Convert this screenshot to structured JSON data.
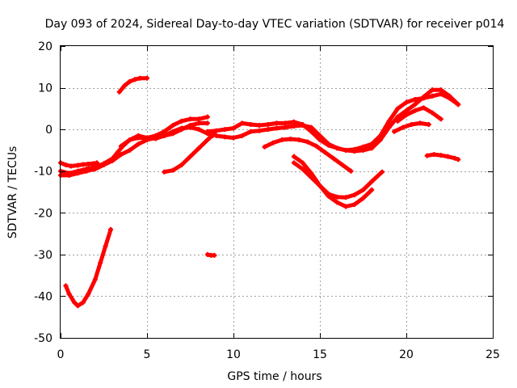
{
  "chart_data": {
    "type": "line",
    "title": "Day 093 of 2024, Sidereal Day-to-day VTEC variation (SDTVAR) for receiver p014",
    "xlabel": "GPS time / hours",
    "ylabel": "SDTVAR / TECUs",
    "xlim": [
      0,
      25
    ],
    "ylim": [
      -50,
      20
    ],
    "xticks": [
      0,
      5,
      10,
      15,
      20,
      25
    ],
    "yticks": [
      -50,
      -40,
      -30,
      -20,
      -10,
      0,
      10,
      20
    ],
    "xtick_labels": [
      "0",
      "5",
      "10",
      "15",
      "20",
      "25"
    ],
    "ytick_labels": [
      "-50",
      "-40",
      "-30",
      "-20",
      "-10",
      "0",
      "10",
      "20"
    ],
    "grid": true,
    "series_color": "#ff0000",
    "series": [
      {
        "name": "s1",
        "x": [
          0.0,
          0.3,
          0.6,
          1.0,
          1.3,
          1.6,
          1.9,
          2.1
        ],
        "y": [
          -8,
          -8.5,
          -8.8,
          -8.6,
          -8.4,
          -8.3,
          -8.2,
          -8.0
        ]
      },
      {
        "name": "s2",
        "x": [
          0.0,
          0.5,
          1.0,
          1.5,
          2.0,
          2.5,
          3.0,
          3.5,
          4.0,
          4.5,
          5.0,
          5.5,
          6.0,
          6.5,
          7.0,
          7.5,
          8.0,
          8.5
        ],
        "y": [
          -11,
          -11,
          -10.5,
          -10,
          -9.5,
          -8.5,
          -7.5,
          -6,
          -5,
          -3.5,
          -2.5,
          -2,
          -1.5,
          -1,
          0,
          1,
          1.5,
          1.5
        ]
      },
      {
        "name": "s3",
        "x": [
          0.0,
          0.5,
          1.0,
          1.5,
          2.0,
          2.5,
          3.0,
          3.3,
          3.6,
          4.0,
          4.5,
          5.0,
          5.5,
          6.0,
          6.5,
          7.0,
          7.5,
          8.0,
          8.5,
          8.8
        ],
        "y": [
          -10,
          -10.5,
          -10,
          -9.5,
          -9,
          -8.2,
          -7,
          -5.5,
          -4,
          -2.5,
          -1.5,
          -2,
          -2.2,
          -1.5,
          -0.5,
          0.3,
          0.5,
          0,
          -1,
          -1.5
        ]
      },
      {
        "name": "s4",
        "x": [
          3.5,
          4.0,
          4.5,
          5.0,
          5.5,
          6.0,
          6.5,
          7.0,
          7.5,
          8.0,
          8.5
        ],
        "y": [
          -4,
          -2.5,
          -2,
          -2,
          -1.5,
          -0.5,
          1,
          2,
          2.5,
          2.5,
          3
        ]
      },
      {
        "name": "s5",
        "x": [
          3.4,
          3.7,
          4.0,
          4.3,
          4.6,
          5.0
        ],
        "y": [
          9,
          10.5,
          11.5,
          12,
          12.3,
          12.3
        ]
      },
      {
        "name": "s6",
        "x": [
          0.3,
          0.5,
          0.8,
          1.0,
          1.3,
          1.6,
          2.0,
          2.3,
          2.6,
          2.9
        ],
        "y": [
          -37.5,
          -39.5,
          -41.5,
          -42.3,
          -41.5,
          -39.5,
          -36,
          -32,
          -28,
          -24
        ]
      },
      {
        "name": "s7",
        "x": [
          6.0,
          6.5,
          7.0,
          7.5,
          8.0,
          8.5,
          8.9
        ],
        "y": [
          -10.2,
          -9.8,
          -8.5,
          -6.5,
          -4.5,
          -2.5,
          -1
        ]
      },
      {
        "name": "s8",
        "x": [
          8.5,
          8.7,
          8.9
        ],
        "y": [
          -30,
          -30.2,
          -30.2
        ]
      },
      {
        "name": "s9",
        "x": [
          8.5,
          9.0,
          9.5,
          10.0,
          10.5,
          11.0,
          11.5,
          12.0,
          12.5,
          13.0,
          13.5,
          14.0,
          14.5,
          15.0,
          15.5,
          16.0,
          16.5,
          17.0,
          17.5,
          18.0,
          18.5,
          19.0,
          19.5,
          20.0,
          20.5,
          21.0,
          21.5,
          22.0,
          22.5,
          23.0
        ],
        "y": [
          -0.5,
          -0.3,
          0,
          0.3,
          1.5,
          1.2,
          1,
          1.2,
          1.5,
          1.5,
          1.8,
          1.2,
          -0.5,
          -2.5,
          -3.8,
          -4.5,
          -5,
          -4.8,
          -4.2,
          -3.5,
          -1.5,
          2,
          5,
          6.5,
          7.2,
          7.5,
          8,
          8.5,
          7.5,
          6
        ]
      },
      {
        "name": "s10",
        "x": [
          9.0,
          9.5,
          10.0,
          10.5,
          11.0,
          11.5,
          12.0,
          12.5,
          13.0,
          13.5,
          14.0,
          14.5,
          15.0,
          15.5,
          16.0,
          16.5,
          17.0,
          17.5,
          18.0,
          18.5,
          19.0,
          19.5,
          20.0,
          20.5,
          21.0,
          21.5,
          22.0,
          22.5,
          23.0
        ],
        "y": [
          -1.5,
          -1.8,
          -2,
          -1.5,
          -0.5,
          -0.3,
          0,
          0.3,
          0.5,
          0.8,
          1,
          0.5,
          -1.5,
          -3.5,
          -4.5,
          -5,
          -5.2,
          -5,
          -4.5,
          -2.5,
          0.5,
          3,
          4.5,
          6,
          7.8,
          9.5,
          9.5,
          8,
          6
        ]
      },
      {
        "name": "s11",
        "x": [
          11.8,
          12.3,
          12.8,
          13.3,
          13.8,
          14.3,
          14.8,
          15.3,
          15.8,
          16.3,
          16.8
        ],
        "y": [
          -4.2,
          -3.2,
          -2.5,
          -2.3,
          -2.5,
          -3,
          -4,
          -5.5,
          -7,
          -8.5,
          -10
        ]
      },
      {
        "name": "s12",
        "x": [
          13.5,
          14.0,
          14.5,
          15.0,
          15.5,
          16.0,
          16.5,
          17.0,
          17.5,
          18.0,
          18.6
        ],
        "y": [
          -8,
          -9.5,
          -11.5,
          -13.5,
          -15.5,
          -16.2,
          -16.3,
          -15.7,
          -14.5,
          -12.5,
          -10.2
        ]
      },
      {
        "name": "s13",
        "x": [
          13.5,
          14.0,
          14.5,
          15.0,
          15.5,
          16.0,
          16.5,
          17.0,
          17.5,
          18.0
        ],
        "y": [
          -6.5,
          -8,
          -10.5,
          -13.5,
          -16,
          -17.5,
          -18.5,
          -18,
          -16.5,
          -14.5
        ]
      },
      {
        "name": "s14",
        "x": [
          19.5,
          20.0,
          20.5,
          21.0,
          21.5,
          22.0
        ],
        "y": [
          2,
          3.5,
          4.5,
          5.2,
          4,
          2.5
        ]
      },
      {
        "name": "s15",
        "x": [
          19.3,
          19.8,
          20.3,
          20.8,
          21.3
        ],
        "y": [
          -0.5,
          0.5,
          1.2,
          1.5,
          1.2
        ]
      },
      {
        "name": "s16",
        "x": [
          21.2,
          21.6,
          22.0,
          22.4,
          22.8,
          23.0
        ],
        "y": [
          -6.3,
          -6.0,
          -6.2,
          -6.5,
          -6.9,
          -7.2
        ]
      }
    ]
  }
}
